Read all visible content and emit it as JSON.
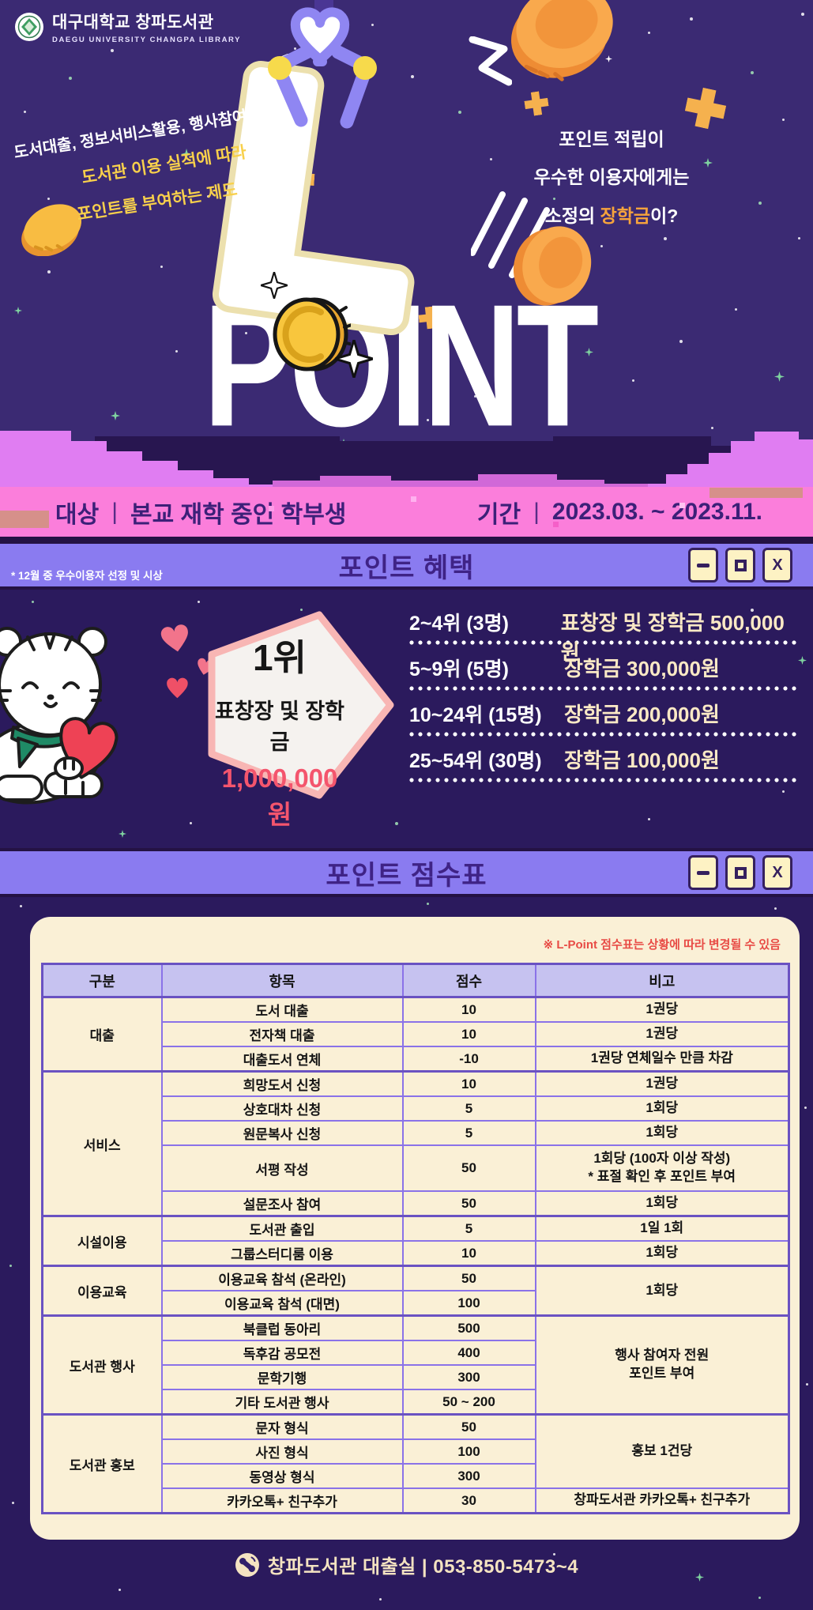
{
  "brand": {
    "title": "대구대학교 창파도서관",
    "subtitle": "DAEGU UNIVERSITY CHANGPA LIBRARY"
  },
  "hero": {
    "claw_letter": "L",
    "word": "POINT",
    "tagline_left": {
      "line1": "도서대출, 정보서비스활용, 행사참여 등",
      "line2": "도서관 이용 실적에 따라",
      "line3": "포인트를 부여하는 제도"
    },
    "tagline_right": {
      "line1": "포인트 적립이",
      "line2": "우수한 이용자에게는",
      "line3_prefix": "소정의 ",
      "line3_highlight": "장학금",
      "line3_suffix": "이?"
    }
  },
  "info_bar": {
    "target_label": "대상",
    "divider": "|",
    "target_value": "본교 재학 중인 학부생",
    "period_label": "기간",
    "period_value": "2023.03. ~ 2023.11."
  },
  "window_controls": {
    "close_glyph": "X"
  },
  "benefits": {
    "title": "포인트 혜택",
    "note": "* 12월 중 우수이용자 선정 및 시상",
    "first_place": {
      "rank": "1위",
      "label": "표창장 및 장학금",
      "amount": "1,000,000원"
    },
    "rankings": [
      {
        "rank": "2~4위 (3명)",
        "prize": "표창장 및 장학금 500,000원"
      },
      {
        "rank": "5~9위 (5명)",
        "prize": "장학금 300,000원"
      },
      {
        "rank": "10~24위 (15명)",
        "prize": "장학금 200,000원"
      },
      {
        "rank": "25~54위 (30명)",
        "prize": "장학금 100,000원"
      }
    ]
  },
  "score_table": {
    "title": "포인트 점수표",
    "note": "※ L-Point 점수표는 상황에 따라 변경될 수 있음",
    "columns": [
      "구분",
      "항목",
      "점수",
      "비고"
    ],
    "groups": [
      {
        "category": "대출",
        "rows": [
          {
            "item": "도서 대출",
            "score": "10",
            "note": "1권당"
          },
          {
            "item": "전자책 대출",
            "score": "10",
            "note": "1권당"
          },
          {
            "item": "대출도서 연체",
            "score": "-10",
            "note": "1권당 연체일수 만큼 차감"
          }
        ]
      },
      {
        "category": "서비스",
        "rows": [
          {
            "item": "희망도서 신청",
            "score": "10",
            "note": "1권당"
          },
          {
            "item": "상호대차 신청",
            "score": "5",
            "note": "1회당"
          },
          {
            "item": "원문복사 신청",
            "score": "5",
            "note": "1회당"
          },
          {
            "item": "서평 작성",
            "score": "50",
            "note": "1회당 (100자 이상 작성)\n* 표절 확인 후 포인트 부여",
            "tall": true
          },
          {
            "item": "설문조사 참여",
            "score": "50",
            "note": "1회당"
          }
        ]
      },
      {
        "category": "시설이용",
        "rows": [
          {
            "item": "도서관 출입",
            "score": "5",
            "note": "1일 1회"
          },
          {
            "item": "그룹스터디룸 이용",
            "score": "10",
            "note": "1회당"
          }
        ]
      },
      {
        "category": "이용교육",
        "rows": [
          {
            "item": "이용교육 참석 (온라인)",
            "score": "50",
            "note": "1회당",
            "note_span": 2
          },
          {
            "item": "이용교육 참석 (대면)",
            "score": "100"
          }
        ]
      },
      {
        "category": "도서관 행사",
        "rows": [
          {
            "item": "북클럽 동아리",
            "score": "500",
            "note": "행사 참여자 전원\n포인트 부여",
            "note_span": 4
          },
          {
            "item": "독후감 공모전",
            "score": "400"
          },
          {
            "item": "문학기행",
            "score": "300"
          },
          {
            "item": "기타 도서관 행사",
            "score": "50 ~ 200"
          }
        ]
      },
      {
        "category": "도서관 홍보",
        "rows": [
          {
            "item": "문자 형식",
            "score": "50",
            "note": "홍보 1건당",
            "note_span": 3
          },
          {
            "item": "사진 형식",
            "score": "100"
          },
          {
            "item": "동영상 형식",
            "score": "300"
          },
          {
            "item": "카카오톡+ 친구추가",
            "score": "30",
            "note": "창파도서관 카카오톡+ 친구추가"
          }
        ]
      }
    ]
  },
  "footer": {
    "contact": "창파도서관 대출실 | 053-850-5473~4"
  }
}
